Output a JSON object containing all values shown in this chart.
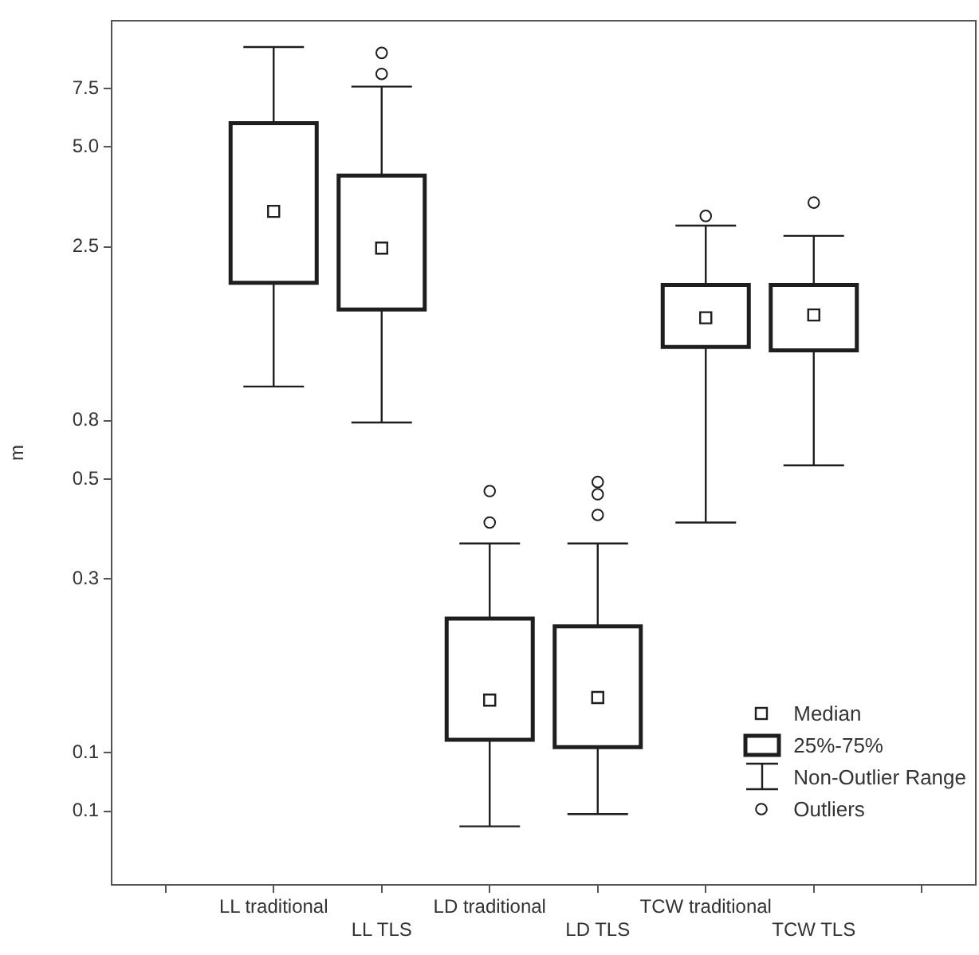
{
  "chart_data": {
    "type": "box",
    "ylabel": "m",
    "log": true,
    "categories": [
      "LL traditional",
      "LL TLS",
      "LD traditional",
      "LD TLS",
      "TCW traditional",
      "TCW TLS"
    ],
    "ylim": [
      0.03,
      12
    ],
    "yticks": [
      {
        "value": 7.5,
        "label": "7.5"
      },
      {
        "value": 5,
        "label": "5.0"
      },
      {
        "value": 2.5,
        "label": "2.5"
      },
      {
        "value": 0.75,
        "label": "0.8"
      },
      {
        "value": 0.5,
        "label": "0.5"
      },
      {
        "value": 0.25,
        "label": "0.3"
      },
      {
        "value": 0.075,
        "label": "0.1"
      },
      {
        "value": 0.05,
        "label": "0.1"
      }
    ],
    "grid": false,
    "annotations": [
      "Median",
      "25%-75%",
      "Non-Outlier Range",
      "Outliers"
    ],
    "series": [
      {
        "color": "#1e1e1e",
        "boxes": [
          {
            "low": 0.95,
            "q1": 1.95,
            "median": 3.2,
            "q3": 5.9,
            "high": 10
          },
          {
            "low": 0.74,
            "q1": 1.62,
            "median": 2.48,
            "q3": 4.1,
            "high": 7.6,
            "outliers": [
              8.3,
              9.6
            ]
          },
          {
            "low": 0.045,
            "q1": 0.082,
            "median": 0.108,
            "q3": 0.19,
            "high": 0.32,
            "outliers": [
              0.37,
              0.46
            ]
          },
          {
            "low": 0.049,
            "q1": 0.078,
            "median": 0.11,
            "q3": 0.18,
            "high": 0.32,
            "outliers": [
              0.39,
              0.45,
              0.49
            ]
          },
          {
            "low": 0.37,
            "q1": 1.25,
            "median": 1.53,
            "q3": 1.92,
            "high": 2.9,
            "outliers": [
              3.1
            ]
          },
          {
            "low": 0.55,
            "q1": 1.22,
            "median": 1.56,
            "q3": 1.92,
            "high": 2.7,
            "outliers": [
              3.4
            ]
          }
        ]
      }
    ]
  }
}
